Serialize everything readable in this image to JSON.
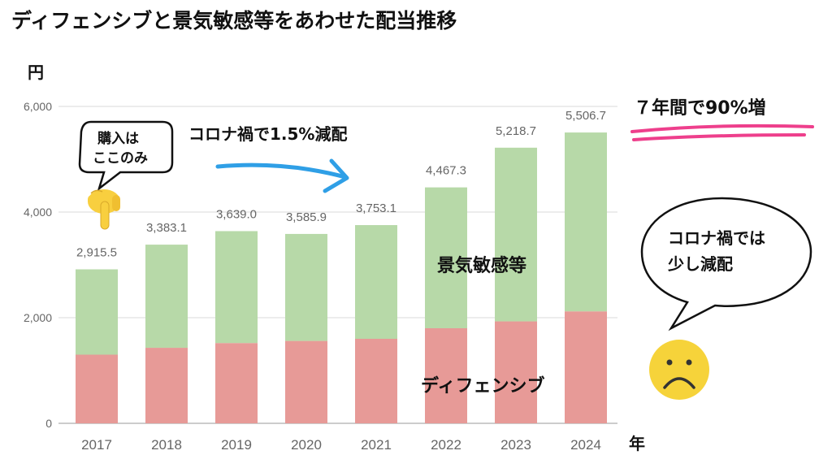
{
  "title": "ディフェンシブと景気敏感等をあわせた配当推移",
  "colors": {
    "defensive": "#e79a97",
    "cyclical": "#b7d9a8",
    "grid": "#d8d8d8",
    "arrow": "#2f9fe6",
    "highlight": "#ee3f8c",
    "face": "#f6d33a"
  },
  "chart_data": {
    "type": "bar",
    "stacked": true,
    "ylabel": "円",
    "xlabel": "年",
    "ylim": [
      0,
      6000
    ],
    "yticks": [
      "0",
      "2,000",
      "4,000",
      "6,000"
    ],
    "ytick_values": [
      0,
      2000,
      4000,
      6000
    ],
    "categories": [
      "2017",
      "2018",
      "2019",
      "2020",
      "2021",
      "2022",
      "2023",
      "2024"
    ],
    "series": [
      {
        "name": "ディフェンシブ",
        "values": [
          1300,
          1430,
          1520,
          1560,
          1600,
          1800,
          1930,
          2120
        ]
      },
      {
        "name": "景気敏感等",
        "values": [
          1615.5,
          1953.1,
          2119.0,
          2025.9,
          2153.1,
          2667.3,
          3288.7,
          3386.7
        ]
      }
    ],
    "totals": [
      2915.5,
      3383.1,
      3639.0,
      3585.9,
      3753.1,
      4467.3,
      5218.7,
      5506.7
    ],
    "total_labels": [
      "2,915.5",
      "3,383.1",
      "3,639.0",
      "3,585.9",
      "3,753.1",
      "4,467.3",
      "5,218.7",
      "5,506.7"
    ],
    "grid": true
  },
  "annotations": {
    "bubble_buy": [
      "購入は",
      "ここのみ"
    ],
    "corona_cut": "コロナ禍で1.5%減配",
    "growth": "７年間で90%増",
    "bubble_corona": [
      "コロナ禍では",
      "少し減配"
    ],
    "cyclical_label": "景気敏感等",
    "defensive_label": "ディフェンシブ"
  },
  "icons": {
    "pointing": "pointing-down-hand-icon",
    "sad": "sad-face-icon"
  }
}
